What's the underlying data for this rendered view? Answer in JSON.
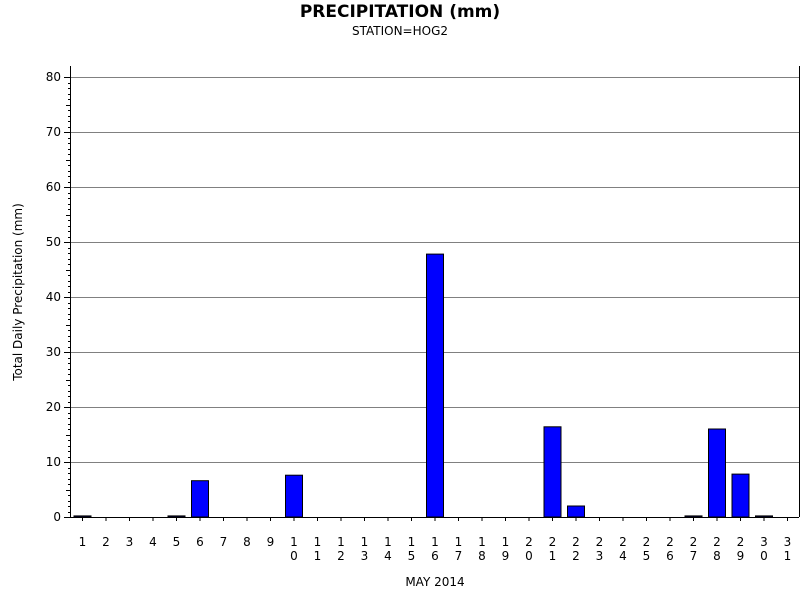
{
  "chart_data": {
    "type": "bar",
    "title": "PRECIPITATION (mm)",
    "subtitle": "STATION=HOG2",
    "xlabel": "MAY 2014",
    "ylabel": "Total Daily Precipitation (mm)",
    "ylim": [
      0,
      80
    ],
    "yticks": [
      0,
      10,
      20,
      30,
      40,
      50,
      60,
      70,
      80
    ],
    "grid": true,
    "categories": [
      "1",
      "2",
      "3",
      "4",
      "5",
      "6",
      "7",
      "8",
      "9",
      "10",
      "11",
      "12",
      "13",
      "14",
      "15",
      "16",
      "17",
      "18",
      "19",
      "20",
      "21",
      "22",
      "23",
      "24",
      "25",
      "26",
      "27",
      "28",
      "29",
      "30",
      "31"
    ],
    "values": [
      0.2,
      0,
      0,
      0,
      0.2,
      6.6,
      0,
      0,
      0,
      7.6,
      0,
      0,
      0,
      0,
      0,
      47.8,
      0,
      0,
      0,
      0,
      16.4,
      2.0,
      0,
      0,
      0,
      0,
      0.2,
      16.0,
      7.8,
      0.2,
      0
    ],
    "colors": {
      "bar_fill": "#0000ff",
      "bar_stroke": "#000000",
      "grid": "#808080"
    }
  }
}
